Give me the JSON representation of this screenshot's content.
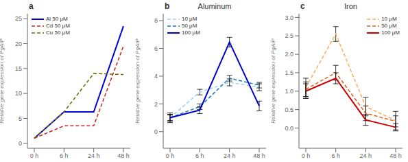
{
  "chart_data": [
    {
      "type": "line",
      "title": "a",
      "ylabel": "Relative gene expression of PgAIP",
      "categories": [
        "0 h",
        "6 h",
        "24 h",
        "48 h"
      ],
      "ylim": [
        -1,
        26
      ],
      "yticks": [
        0,
        5,
        10,
        15,
        20,
        25
      ],
      "grid": false,
      "legend": "upper left",
      "series": [
        {
          "name": "Al 50 μM",
          "color": "#0000dd",
          "line_style": "solid",
          "values": [
            1,
            6.3,
            6.3,
            23.5
          ]
        },
        {
          "name": "Cd 50 μM",
          "color": "#cc2222",
          "line_style": "dashed",
          "values": [
            1,
            3.5,
            3.5,
            19.5
          ]
        },
        {
          "name": "Cu 50 μM",
          "color": "#6b6b00",
          "line_style": "dashed",
          "values": [
            1,
            6.3,
            14.0,
            13.8
          ]
        }
      ]
    },
    {
      "type": "line",
      "title": "b",
      "subtitle": "Aluminum",
      "ylabel": "Relative gene expression of PgAIP",
      "categories": [
        "0 h",
        "6 h",
        "24 h",
        "48 h"
      ],
      "ylim": [
        -1.2,
        8.5
      ],
      "yticks": [
        0,
        2,
        4,
        6,
        8
      ],
      "grid": false,
      "legend": "upper left",
      "series": [
        {
          "name": "10 μM",
          "color": "#a0d0f0",
          "line_style": "dashed",
          "values": [
            1.0,
            2.85,
            3.55,
            3.2
          ],
          "yerr": [
            0.35,
            0.2,
            0.25,
            0.25
          ]
        },
        {
          "name": "50 μM",
          "color": "#1a7abf",
          "line_style": "dashed",
          "values": [
            1.0,
            1.8,
            3.85,
            3.35
          ],
          "yerr": [
            0.2,
            0.2,
            0.2,
            0.2
          ]
        },
        {
          "name": "100 μM",
          "color": "#0000cc",
          "line_style": "solid",
          "values": [
            1.0,
            1.55,
            6.45,
            1.85
          ],
          "yerr": [
            0.25,
            0.25,
            0.35,
            0.35
          ]
        }
      ]
    },
    {
      "type": "line",
      "title": "c",
      "subtitle": "Iron",
      "ylabel": "Relative gene expression of PgAIP",
      "categories": [
        "0 h",
        "6 h",
        "24 h",
        "48 h"
      ],
      "ylim": [
        -0.55,
        3.1
      ],
      "yticks": [
        {
          "value": 0,
          "label": "0.0"
        },
        0.5,
        {
          "value": 1.0,
          "label": "1.0"
        },
        1.5,
        {
          "value": 2.0,
          "label": "2.0"
        },
        2.5,
        {
          "value": 3.0,
          "label": "3.0"
        }
      ],
      "grid": false,
      "legend": "upper right",
      "series": [
        {
          "name": "10 μM",
          "color": "#ffaa55",
          "line_style": "dashed",
          "values": [
            1.1,
            2.55,
            0.58,
            0.2
          ],
          "yerr": [
            0.25,
            0.2,
            0.25,
            0.25
          ]
        },
        {
          "name": "50 μM",
          "color": "#e06010",
          "line_style": "dashed",
          "values": [
            1.05,
            1.5,
            0.4,
            0.18
          ],
          "yerr": [
            0.2,
            0.2,
            0.2,
            0.15
          ]
        },
        {
          "name": "100 μM",
          "color": "#cc0000",
          "line_style": "solid",
          "values": [
            1.0,
            1.35,
            0.22,
            0.02
          ],
          "yerr": [
            0.2,
            0.15,
            0.15,
            0.1
          ]
        }
      ]
    }
  ]
}
